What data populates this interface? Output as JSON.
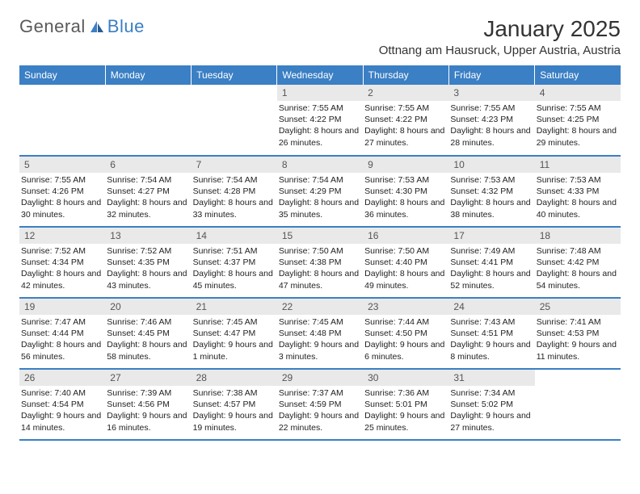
{
  "brand": {
    "part1": "General",
    "part2": "Blue"
  },
  "title": "January 2025",
  "location": "Ottnang am Hausruck, Upper Austria, Austria",
  "colors": {
    "accent": "#3b7fc4",
    "daybar": "#e9e9e9",
    "text": "#222222",
    "header_text": "#ffffff"
  },
  "days_of_week": [
    "Sunday",
    "Monday",
    "Tuesday",
    "Wednesday",
    "Thursday",
    "Friday",
    "Saturday"
  ],
  "weeks": [
    [
      null,
      null,
      null,
      {
        "n": "1",
        "sr": "7:55 AM",
        "ss": "4:22 PM",
        "dl": "8 hours and 26 minutes."
      },
      {
        "n": "2",
        "sr": "7:55 AM",
        "ss": "4:22 PM",
        "dl": "8 hours and 27 minutes."
      },
      {
        "n": "3",
        "sr": "7:55 AM",
        "ss": "4:23 PM",
        "dl": "8 hours and 28 minutes."
      },
      {
        "n": "4",
        "sr": "7:55 AM",
        "ss": "4:25 PM",
        "dl": "8 hours and 29 minutes."
      }
    ],
    [
      {
        "n": "5",
        "sr": "7:55 AM",
        "ss": "4:26 PM",
        "dl": "8 hours and 30 minutes."
      },
      {
        "n": "6",
        "sr": "7:54 AM",
        "ss": "4:27 PM",
        "dl": "8 hours and 32 minutes."
      },
      {
        "n": "7",
        "sr": "7:54 AM",
        "ss": "4:28 PM",
        "dl": "8 hours and 33 minutes."
      },
      {
        "n": "8",
        "sr": "7:54 AM",
        "ss": "4:29 PM",
        "dl": "8 hours and 35 minutes."
      },
      {
        "n": "9",
        "sr": "7:53 AM",
        "ss": "4:30 PM",
        "dl": "8 hours and 36 minutes."
      },
      {
        "n": "10",
        "sr": "7:53 AM",
        "ss": "4:32 PM",
        "dl": "8 hours and 38 minutes."
      },
      {
        "n": "11",
        "sr": "7:53 AM",
        "ss": "4:33 PM",
        "dl": "8 hours and 40 minutes."
      }
    ],
    [
      {
        "n": "12",
        "sr": "7:52 AM",
        "ss": "4:34 PM",
        "dl": "8 hours and 42 minutes."
      },
      {
        "n": "13",
        "sr": "7:52 AM",
        "ss": "4:35 PM",
        "dl": "8 hours and 43 minutes."
      },
      {
        "n": "14",
        "sr": "7:51 AM",
        "ss": "4:37 PM",
        "dl": "8 hours and 45 minutes."
      },
      {
        "n": "15",
        "sr": "7:50 AM",
        "ss": "4:38 PM",
        "dl": "8 hours and 47 minutes."
      },
      {
        "n": "16",
        "sr": "7:50 AM",
        "ss": "4:40 PM",
        "dl": "8 hours and 49 minutes."
      },
      {
        "n": "17",
        "sr": "7:49 AM",
        "ss": "4:41 PM",
        "dl": "8 hours and 52 minutes."
      },
      {
        "n": "18",
        "sr": "7:48 AM",
        "ss": "4:42 PM",
        "dl": "8 hours and 54 minutes."
      }
    ],
    [
      {
        "n": "19",
        "sr": "7:47 AM",
        "ss": "4:44 PM",
        "dl": "8 hours and 56 minutes."
      },
      {
        "n": "20",
        "sr": "7:46 AM",
        "ss": "4:45 PM",
        "dl": "8 hours and 58 minutes."
      },
      {
        "n": "21",
        "sr": "7:45 AM",
        "ss": "4:47 PM",
        "dl": "9 hours and 1 minute."
      },
      {
        "n": "22",
        "sr": "7:45 AM",
        "ss": "4:48 PM",
        "dl": "9 hours and 3 minutes."
      },
      {
        "n": "23",
        "sr": "7:44 AM",
        "ss": "4:50 PM",
        "dl": "9 hours and 6 minutes."
      },
      {
        "n": "24",
        "sr": "7:43 AM",
        "ss": "4:51 PM",
        "dl": "9 hours and 8 minutes."
      },
      {
        "n": "25",
        "sr": "7:41 AM",
        "ss": "4:53 PM",
        "dl": "9 hours and 11 minutes."
      }
    ],
    [
      {
        "n": "26",
        "sr": "7:40 AM",
        "ss": "4:54 PM",
        "dl": "9 hours and 14 minutes."
      },
      {
        "n": "27",
        "sr": "7:39 AM",
        "ss": "4:56 PM",
        "dl": "9 hours and 16 minutes."
      },
      {
        "n": "28",
        "sr": "7:38 AM",
        "ss": "4:57 PM",
        "dl": "9 hours and 19 minutes."
      },
      {
        "n": "29",
        "sr": "7:37 AM",
        "ss": "4:59 PM",
        "dl": "9 hours and 22 minutes."
      },
      {
        "n": "30",
        "sr": "7:36 AM",
        "ss": "5:01 PM",
        "dl": "9 hours and 25 minutes."
      },
      {
        "n": "31",
        "sr": "7:34 AM",
        "ss": "5:02 PM",
        "dl": "9 hours and 27 minutes."
      },
      null
    ]
  ],
  "labels": {
    "sunrise": "Sunrise:",
    "sunset": "Sunset:",
    "daylight": "Daylight:"
  }
}
